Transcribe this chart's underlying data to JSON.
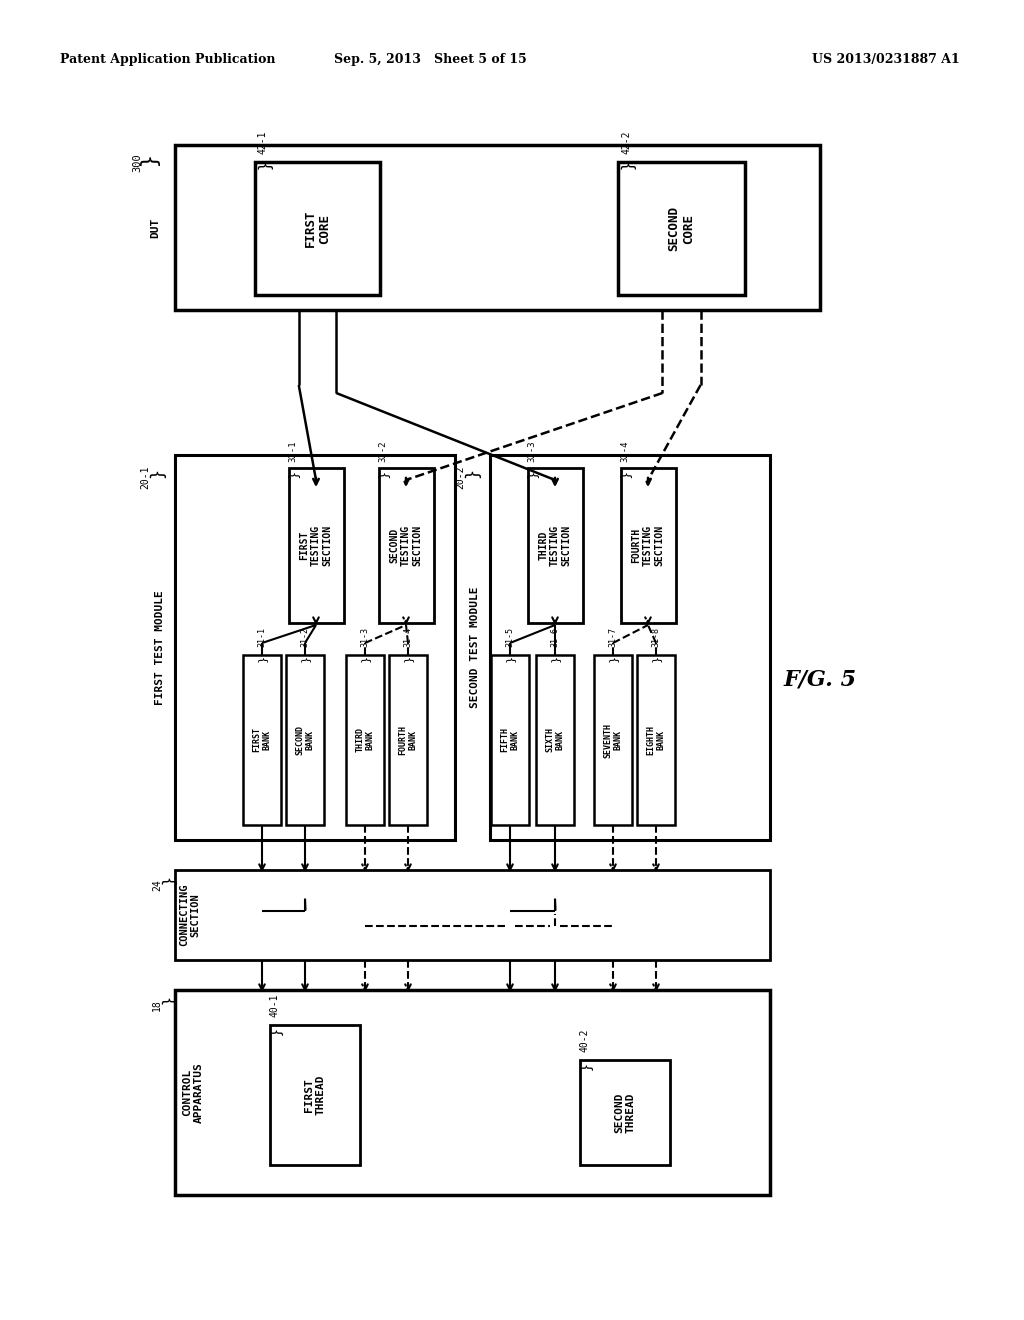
{
  "title_left": "Patent Application Publication",
  "title_mid": "Sep. 5, 2013   Sheet 5 of 15",
  "title_right": "US 2013/0231887 A1",
  "fig_label": "F/G. 5",
  "bg_color": "#ffffff"
}
